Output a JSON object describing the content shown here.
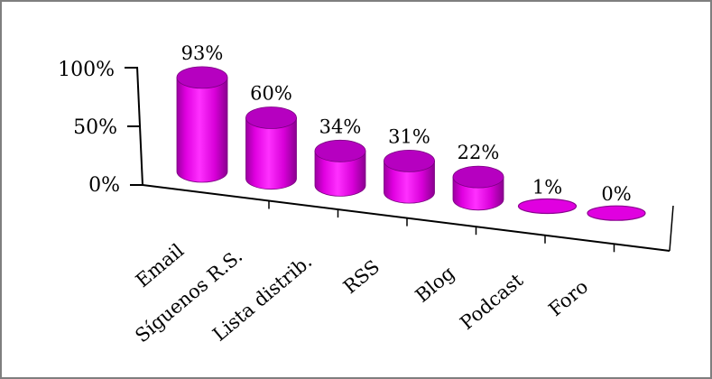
{
  "chart_data": {
    "type": "bar",
    "style": "3d-cylinder",
    "title": "",
    "xlabel": "",
    "ylabel": "",
    "categories": [
      "Email",
      "Síguenos R.S.",
      "Lista distrib.",
      "RSS",
      "Blog",
      "Podcast",
      "Foro"
    ],
    "values": [
      93,
      60,
      34,
      31,
      22,
      1,
      0
    ],
    "data_labels": [
      "93%",
      "60%",
      "34%",
      "31%",
      "22%",
      "1%",
      "0%"
    ],
    "ylim": [
      0,
      100
    ],
    "yticks": [
      0,
      50,
      100
    ],
    "ytick_labels": [
      "0%",
      "50%",
      "100%"
    ],
    "grid": false,
    "legend": "none",
    "colors": {
      "bar_fill": "#e000e0",
      "bar_top": "#b600c0",
      "bar_shadow": "#8a008f",
      "axis": "#000000",
      "border": "#7f7f7f"
    }
  }
}
